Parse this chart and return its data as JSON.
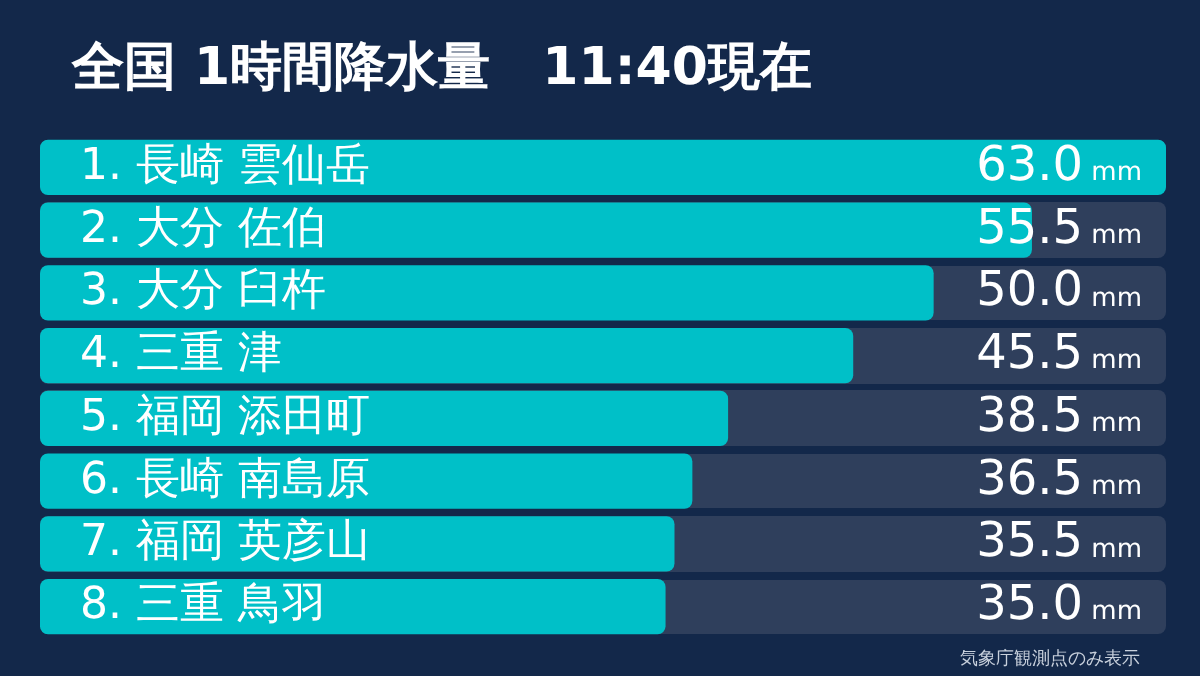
{
  "chart_data": {
    "type": "bar",
    "orientation": "horizontal",
    "title": "全国 1時間降水量　11:40現在",
    "categories": [
      "1. 長崎 雲仙岳",
      "2. 大分 佐伯",
      "3. 大分 臼杵",
      "4. 三重 津",
      "5. 福岡 添田町",
      "6. 長崎 南島原",
      "7. 福岡 英彦山",
      "8. 三重 鳥羽"
    ],
    "values": [
      63.0,
      55.5,
      50.0,
      45.5,
      38.5,
      36.5,
      35.5,
      35.0
    ],
    "value_labels": [
      "63.0",
      "55.5",
      "50.0",
      "45.5",
      "38.5",
      "36.5",
      "35.5",
      "35.0"
    ],
    "xlabel": "mm",
    "color": "#00c0c8",
    "annotations": [
      "気象庁観測点のみ表示"
    ]
  }
}
